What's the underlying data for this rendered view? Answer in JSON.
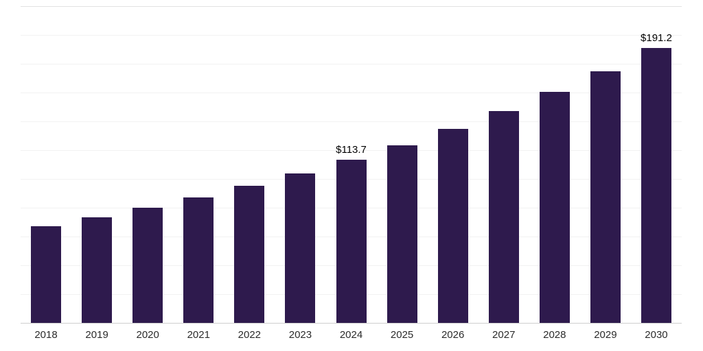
{
  "chart_data": {
    "type": "bar",
    "title": "",
    "xlabel": "",
    "ylabel": "",
    "categories": [
      "2018",
      "2019",
      "2020",
      "2021",
      "2022",
      "2023",
      "2024",
      "2025",
      "2026",
      "2027",
      "2028",
      "2029",
      "2030"
    ],
    "values": [
      67.6,
      73.7,
      80.4,
      87.7,
      95.6,
      104.3,
      113.7,
      124.0,
      135.2,
      147.4,
      160.8,
      175.3,
      191.2
    ],
    "data_labels": [
      "",
      "",
      "",
      "",
      "",
      "",
      "$113.7",
      "",
      "",
      "",
      "",
      "",
      "$191.2"
    ],
    "ylim": [
      0,
      220
    ],
    "gridline_step": 20,
    "grid": "horizontal, very light",
    "legend_position": "none",
    "bar_color": "#2e1a4d",
    "axis_line_color": "#cfcfcf",
    "gridline_color": "#f2f2f2",
    "label_color": "#000000",
    "tick_label_color": "#2b2b2b"
  }
}
